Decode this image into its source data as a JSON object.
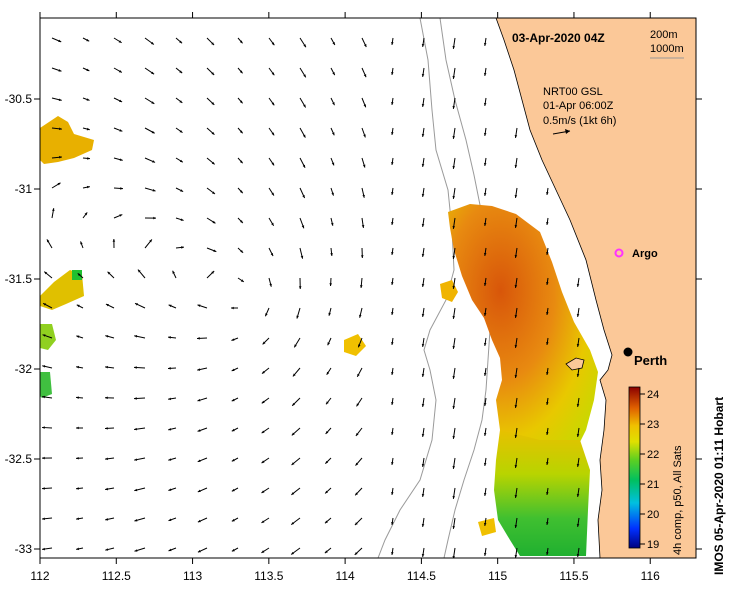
{
  "map": {
    "title": "03-Apr-2020 04Z",
    "depth_contours": [
      "200m",
      "1000m"
    ],
    "current_source": "NRT00 GSL",
    "current_time": "01-Apr 06:00Z",
    "current_scale": "0.5m/s (1kt 6h)",
    "argo_label": "Argo",
    "city_label": "Perth",
    "colorbar_caption": "4h comp, p50, All Sats",
    "colorbar_ticks": [
      "24",
      "23",
      "22",
      "21",
      "20",
      "19"
    ],
    "credit": "IMOS 05-Apr-2020 01:11 Hobart",
    "x_ticks": [
      "112",
      "112.5",
      "113",
      "113.5",
      "114",
      "114.5",
      "115",
      "115.5",
      "116"
    ],
    "y_ticks": [
      "-30.5",
      "-31",
      "-31.5",
      "-32",
      "-32.5",
      "-33"
    ],
    "colors": {
      "land": "#fbc898",
      "sst_high": "#d8560a",
      "sst_mid": "#f0c000",
      "sst_low": "#28b428",
      "argo_marker": "#ff33ff"
    }
  }
}
